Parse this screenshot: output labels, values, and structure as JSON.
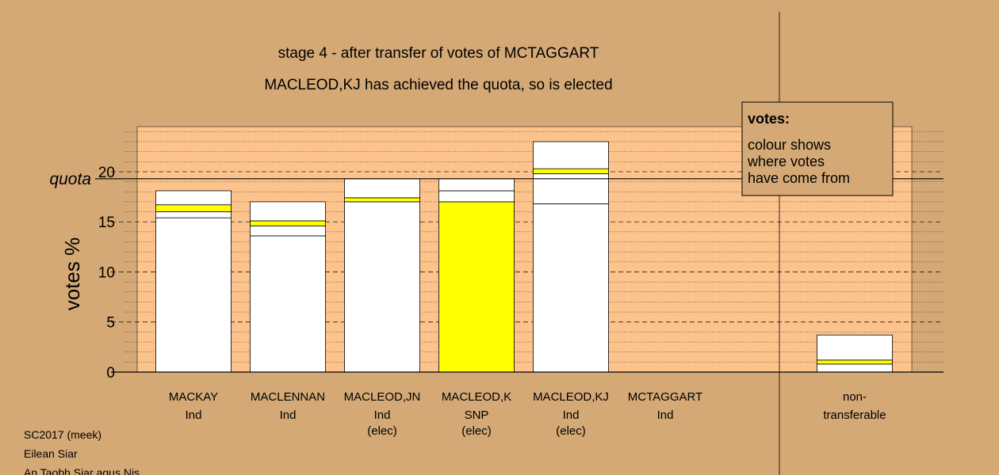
{
  "chart_data": {
    "type": "bar",
    "stacked": true,
    "title": "stage 4 - after transfer of votes of MCTAGGART",
    "subtitle": "MACLEOD,KJ has achieved the quota, so is elected",
    "ylabel": "votes %",
    "ylim": [
      0,
      24.5
    ],
    "yticks": [
      0,
      5,
      10,
      15,
      20
    ],
    "quota_label": "quota",
    "quota_value": 19.3,
    "grid": true,
    "legend": {
      "position": "top-right",
      "title": "votes:",
      "lines": [
        "colour shows",
        "where votes",
        "have come from"
      ]
    },
    "colors": {
      "background": "#d4a976",
      "plot_area": "#fcc38d",
      "bar": "#ffffff",
      "transfer": "#ffff00",
      "edge": "#000000"
    },
    "candidates": [
      {
        "name": "MACKAY",
        "party": "Ind",
        "status": "",
        "segments": [
          {
            "value": 15.4,
            "color": "#ffffff"
          },
          {
            "value": 0.6,
            "color": "#ffffff"
          },
          {
            "value": 0.7,
            "color": "#ffff00"
          },
          {
            "value": 1.4,
            "color": "#ffffff"
          }
        ]
      },
      {
        "name": "MACLENNAN",
        "party": "Ind",
        "status": "",
        "segments": [
          {
            "value": 13.6,
            "color": "#ffffff"
          },
          {
            "value": 1.0,
            "color": "#ffffff"
          },
          {
            "value": 0.5,
            "color": "#ffff00"
          },
          {
            "value": 1.9,
            "color": "#ffffff"
          }
        ]
      },
      {
        "name": "MACLEOD,JN",
        "party": "Ind",
        "status": "(elec)",
        "segments": [
          {
            "value": 17.0,
            "color": "#ffffff"
          },
          {
            "value": 0.4,
            "color": "#ffff00"
          },
          {
            "value": 1.9,
            "color": "#ffffff"
          }
        ]
      },
      {
        "name": "MACLEOD,K",
        "party": "SNP",
        "status": "(elec)",
        "segments": [
          {
            "value": 17.0,
            "color": "#ffff00"
          },
          {
            "value": 1.1,
            "color": "#ffffff"
          },
          {
            "value": 1.2,
            "color": "#ffffff"
          }
        ]
      },
      {
        "name": "MACLEOD,KJ",
        "party": "Ind",
        "status": "(elec)",
        "segments": [
          {
            "value": 16.8,
            "color": "#ffffff"
          },
          {
            "value": 3.0,
            "color": "#ffffff"
          },
          {
            "value": 0.5,
            "color": "#ffff00"
          },
          {
            "value": 2.7,
            "color": "#ffffff"
          }
        ]
      },
      {
        "name": "MCTAGGART",
        "party": "Ind",
        "status": "",
        "segments": []
      }
    ],
    "nontransferable": {
      "label_line1": "non-",
      "label_line2": "transferable",
      "segments": [
        {
          "value": 0.8,
          "color": "#ffffff"
        },
        {
          "value": 0.4,
          "color": "#ffff00"
        },
        {
          "value": 2.5,
          "color": "#ffffff"
        }
      ]
    }
  },
  "footer": {
    "line1": "SC2017 (meek)",
    "line2": "Eilean Siar",
    "line3": "An Taobh Siar agus Nis"
  }
}
